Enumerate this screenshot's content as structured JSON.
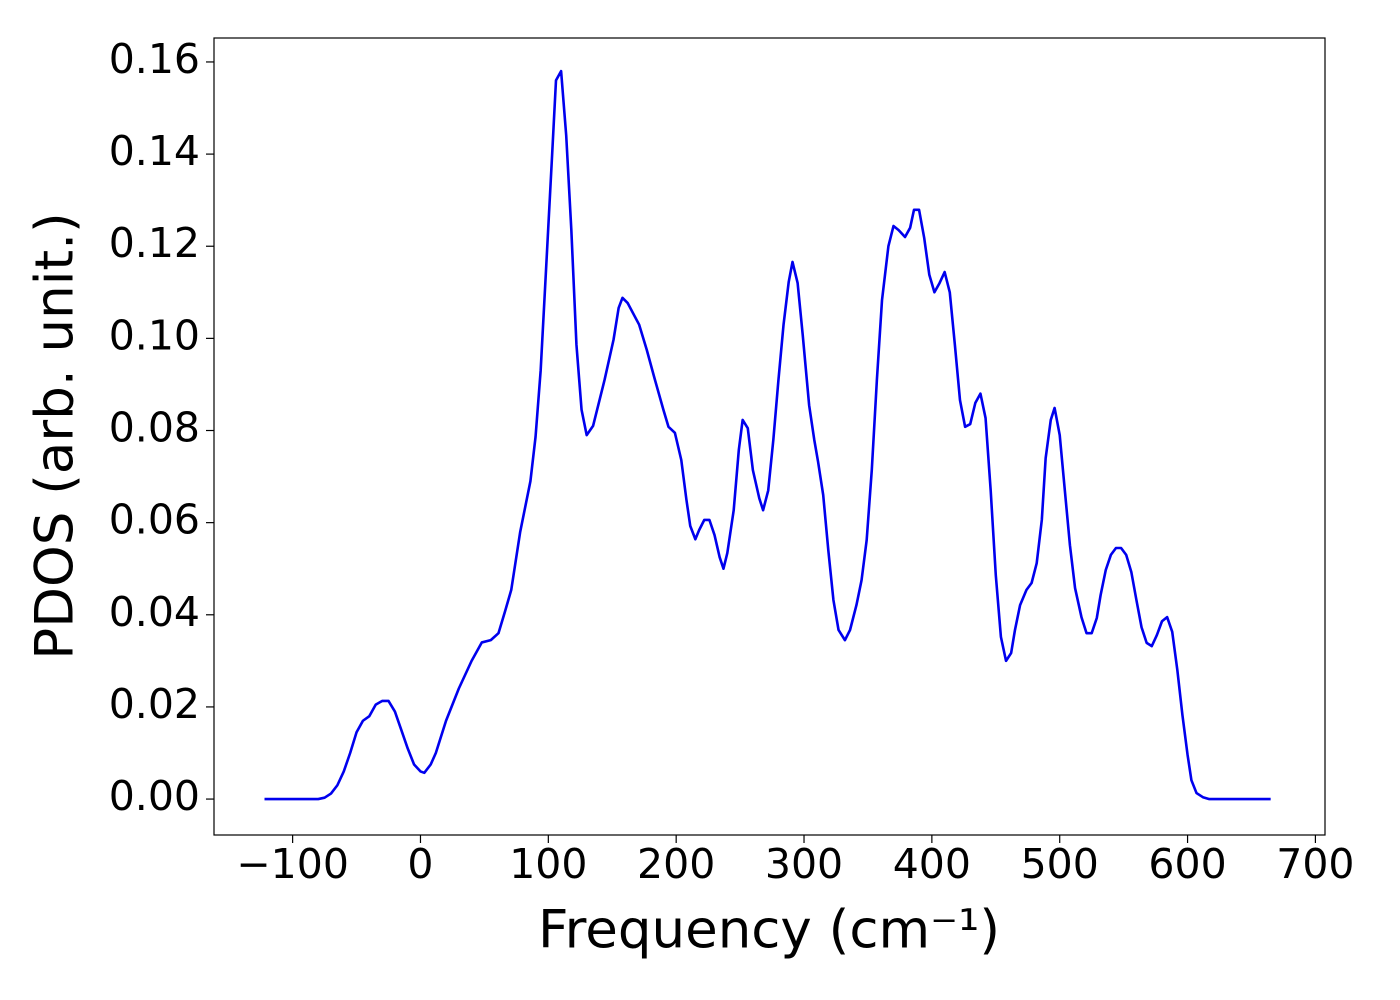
{
  "chart_data": {
    "type": "line",
    "x_label": "Frequency (cm⁻¹)",
    "y_label": "PDOS (arb. unit.)",
    "xlim": [
      -161.5,
      707.5
    ],
    "ylim": [
      -0.0078,
      0.1652
    ],
    "xticks": [
      {
        "value": -100,
        "label": "−100"
      },
      0,
      100,
      200,
      300,
      400,
      500,
      600,
      700
    ],
    "yticks": [
      {
        "value": 0,
        "label": "0.00"
      },
      0.02,
      0.04,
      0.06,
      0.08,
      {
        "value": 0.1,
        "label": "0.10"
      },
      0.12,
      0.14,
      0.16
    ],
    "grid": false,
    "series": [
      {
        "color": "#0000ee",
        "x": [
          -122,
          -100,
          -80,
          -75,
          -70,
          -65,
          -60,
          -55,
          -50,
          -45,
          -40,
          -35,
          -30,
          -25,
          -20,
          -15,
          -10,
          -5,
          0,
          3,
          8,
          12,
          20,
          30,
          40,
          48,
          55,
          61,
          66,
          71,
          78,
          86,
          90,
          94,
          99,
          103,
          106,
          110,
          114,
          118,
          122,
          126,
          130,
          135,
          144,
          151,
          155,
          158,
          162,
          171,
          177,
          183,
          190,
          194,
          199,
          204,
          208,
          211,
          215,
          218,
          222,
          226,
          230,
          234,
          237,
          240,
          245,
          249,
          252,
          256,
          260,
          265,
          268,
          272,
          276,
          280,
          284,
          288,
          291,
          295,
          299,
          304,
          308,
          311,
          315,
          319,
          323,
          327,
          332,
          336,
          341,
          345,
          349,
          353,
          357,
          361,
          366,
          370,
          374,
          379,
          383,
          386,
          390,
          394,
          398,
          402,
          406,
          410,
          414,
          418,
          422,
          426,
          430,
          434,
          438,
          442,
          446,
          450,
          454,
          458,
          462,
          465,
          469,
          474,
          478,
          482,
          486,
          489,
          493,
          496,
          500,
          504,
          508,
          512,
          517,
          521,
          525,
          529,
          532,
          536,
          540,
          544,
          548,
          552,
          556,
          560,
          564,
          568,
          572,
          576,
          580,
          584,
          588,
          592,
          596,
          600,
          603,
          607,
          612,
          617,
          665
        ],
        "values": [
          0,
          0,
          0,
          0.0003,
          0.0012,
          0.003,
          0.006,
          0.01,
          0.0145,
          0.017,
          0.018,
          0.0205,
          0.0213,
          0.0213,
          0.019,
          0.015,
          0.011,
          0.0075,
          0.006,
          0.0057,
          0.0075,
          0.01,
          0.017,
          0.024,
          0.03,
          0.034,
          0.0345,
          0.036,
          0.0406,
          0.0454,
          0.058,
          0.069,
          0.0786,
          0.093,
          0.119,
          0.14,
          0.156,
          0.158,
          0.144,
          0.1235,
          0.0986,
          0.0845,
          0.079,
          0.081,
          0.091,
          0.0997,
          0.1066,
          0.1088,
          0.1077,
          0.103,
          0.0975,
          0.0914,
          0.0845,
          0.0808,
          0.0795,
          0.0736,
          0.065,
          0.0593,
          0.0564,
          0.0584,
          0.0606,
          0.0606,
          0.0573,
          0.0525,
          0.05,
          0.0534,
          0.0627,
          0.0758,
          0.0823,
          0.0805,
          0.0714,
          0.0653,
          0.0627,
          0.067,
          0.078,
          0.091,
          0.103,
          0.1122,
          0.1166,
          0.112,
          0.1007,
          0.0855,
          0.078,
          0.0732,
          0.066,
          0.054,
          0.0432,
          0.0367,
          0.0345,
          0.0367,
          0.0421,
          0.0475,
          0.0562,
          0.0714,
          0.091,
          0.1083,
          0.12,
          0.1244,
          0.1235,
          0.122,
          0.124,
          0.1279,
          0.1279,
          0.1218,
          0.1138,
          0.11,
          0.112,
          0.1144,
          0.11,
          0.0986,
          0.0866,
          0.0808,
          0.0814,
          0.086,
          0.088,
          0.0827,
          0.067,
          0.0486,
          0.0352,
          0.03,
          0.0317,
          0.0367,
          0.0421,
          0.0454,
          0.0469,
          0.0512,
          0.0606,
          0.074,
          0.0823,
          0.0849,
          0.079,
          0.067,
          0.0551,
          0.0458,
          0.0395,
          0.036,
          0.036,
          0.0393,
          0.0443,
          0.0497,
          0.053,
          0.0545,
          0.0545,
          0.053,
          0.0493,
          0.0432,
          0.0373,
          0.0339,
          0.0332,
          0.0356,
          0.0386,
          0.0395,
          0.0363,
          0.028,
          0.0182,
          0.0096,
          0.0041,
          0.0013,
          0.0004,
          0,
          0
        ]
      }
    ]
  }
}
